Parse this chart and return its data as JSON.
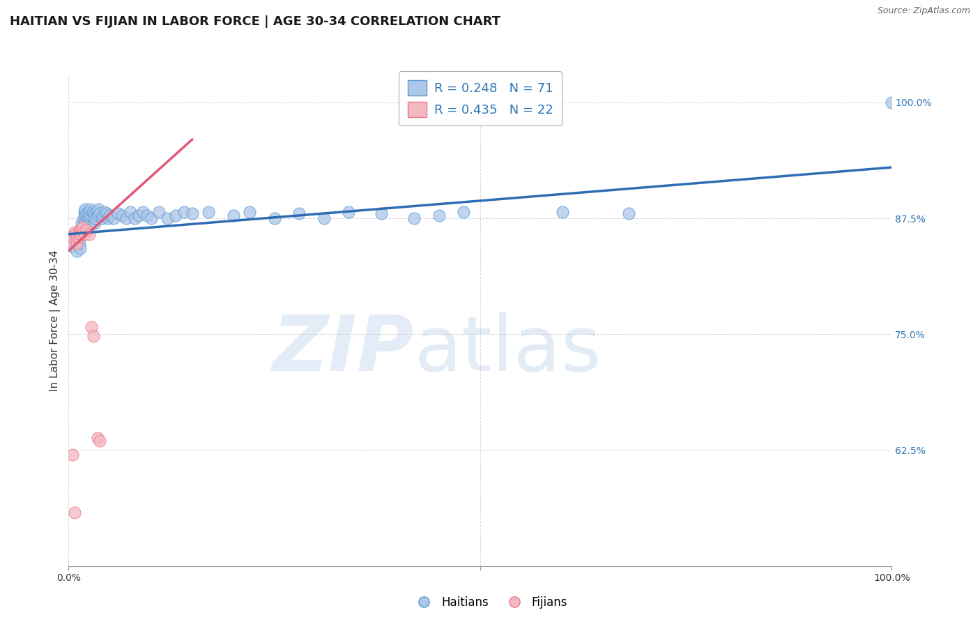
{
  "title": "HAITIAN VS FIJIAN IN LABOR FORCE | AGE 30-34 CORRELATION CHART",
  "source_text": "Source: ZipAtlas.com",
  "ylabel": "In Labor Force | Age 30-34",
  "xmin": 0.0,
  "xmax": 1.0,
  "ymin": 0.5,
  "ymax": 1.03,
  "ytick_positions": [
    0.625,
    0.75,
    0.875,
    1.0
  ],
  "ytick_labels": [
    "62.5%",
    "75.0%",
    "87.5%",
    "100.0%"
  ],
  "blue_color": "#aec6e8",
  "blue_edge_color": "#5b9bd5",
  "pink_color": "#f4b8c1",
  "pink_edge_color": "#e87a8a",
  "blue_line_color": "#2e6db4",
  "pink_line_color": "#e05a78",
  "legend_blue_label": "R = 0.248   N = 71",
  "legend_pink_label": "R = 0.435   N = 22",
  "haitians_label": "Haitians",
  "fijians_label": "Fijians",
  "grid_color": "#cccccc",
  "title_fontsize": 13,
  "axis_label_fontsize": 11,
  "tick_fontsize": 10,
  "blue_x": [
    0.005,
    0.007,
    0.008,
    0.01,
    0.01,
    0.012,
    0.013,
    0.014,
    0.015,
    0.015,
    0.016,
    0.017,
    0.018,
    0.018,
    0.019,
    0.02,
    0.02,
    0.021,
    0.022,
    0.022,
    0.023,
    0.024,
    0.025,
    0.025,
    0.026,
    0.027,
    0.028,
    0.029,
    0.03,
    0.031,
    0.032,
    0.033,
    0.034,
    0.035,
    0.036,
    0.038,
    0.04,
    0.042,
    0.044,
    0.046,
    0.048,
    0.05,
    0.055,
    0.06,
    0.065,
    0.07,
    0.075,
    0.08,
    0.085,
    0.09,
    0.095,
    0.1,
    0.11,
    0.12,
    0.13,
    0.14,
    0.15,
    0.17,
    0.2,
    0.22,
    0.25,
    0.28,
    0.31,
    0.34,
    0.38,
    0.42,
    0.45,
    0.48,
    0.6,
    0.68,
    1.0
  ],
  "blue_y": [
    0.845,
    0.85,
    0.855,
    0.84,
    0.85,
    0.855,
    0.848,
    0.843,
    0.858,
    0.863,
    0.87,
    0.862,
    0.868,
    0.875,
    0.882,
    0.878,
    0.885,
    0.872,
    0.865,
    0.88,
    0.875,
    0.882,
    0.87,
    0.878,
    0.885,
    0.875,
    0.868,
    0.882,
    0.875,
    0.88,
    0.87,
    0.875,
    0.882,
    0.878,
    0.885,
    0.88,
    0.875,
    0.878,
    0.882,
    0.88,
    0.875,
    0.878,
    0.875,
    0.88,
    0.878,
    0.875,
    0.882,
    0.875,
    0.878,
    0.882,
    0.878,
    0.875,
    0.882,
    0.875,
    0.878,
    0.882,
    0.88,
    0.882,
    0.878,
    0.882,
    0.875,
    0.88,
    0.875,
    0.882,
    0.88,
    0.875,
    0.878,
    0.882,
    0.882,
    0.88,
    1.0
  ],
  "pink_x": [
    0.003,
    0.005,
    0.007,
    0.008,
    0.01,
    0.01,
    0.012,
    0.013,
    0.014,
    0.015,
    0.016,
    0.017,
    0.018,
    0.02,
    0.022,
    0.025,
    0.028,
    0.03,
    0.035,
    0.038,
    0.005,
    0.007
  ],
  "pink_y": [
    0.85,
    0.855,
    0.86,
    0.858,
    0.848,
    0.855,
    0.855,
    0.862,
    0.858,
    0.863,
    0.858,
    0.865,
    0.86,
    0.858,
    0.862,
    0.858,
    0.758,
    0.748,
    0.638,
    0.635,
    0.62,
    0.558
  ],
  "blue_line_x": [
    0.0,
    1.0
  ],
  "blue_line_y": [
    0.858,
    0.93
  ],
  "pink_line_x": [
    0.0,
    0.15
  ],
  "pink_line_y": [
    0.84,
    0.96
  ]
}
